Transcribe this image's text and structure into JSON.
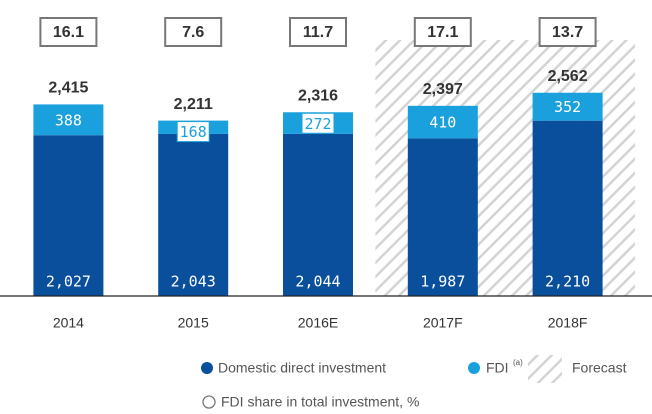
{
  "chart_data": {
    "type": "stacked_bar",
    "categories": [
      "2014",
      "2015",
      "2016E",
      "2017F",
      "2018F"
    ],
    "series": [
      {
        "name": "Domestic direct investment",
        "color": "#0a4f9c",
        "values": [
          2027,
          2043,
          2044,
          1987,
          2210
        ],
        "value_labels": [
          "2,027",
          "2,043",
          "2,044",
          "1,987",
          "2,210"
        ]
      },
      {
        "name": "FDI",
        "superscript": "(a)",
        "color": "#1aa0dc",
        "values": [
          388,
          168,
          272,
          410,
          352
        ]
      }
    ],
    "totals": {
      "values": [
        2415,
        2211,
        2316,
        2397,
        2562
      ],
      "value_labels": [
        "2,415",
        "2,211",
        "2,316",
        "2,397",
        "2,562"
      ]
    },
    "fdi_share": {
      "name": "FDI share in total investment, %",
      "values": [
        16.1,
        7.6,
        11.7,
        17.1,
        13.7
      ]
    },
    "forecast_label": "Forecast",
    "ylim": [
      0,
      3000
    ]
  }
}
